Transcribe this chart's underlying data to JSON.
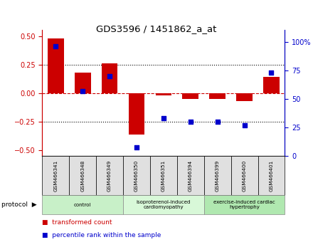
{
  "title": "GDS3596 / 1451862_a_at",
  "samples": [
    "GSM466341",
    "GSM466348",
    "GSM466349",
    "GSM466350",
    "GSM466351",
    "GSM466394",
    "GSM466399",
    "GSM466400",
    "GSM466401"
  ],
  "bar_values": [
    0.48,
    0.18,
    0.26,
    -0.36,
    -0.02,
    -0.05,
    -0.05,
    -0.07,
    0.14
  ],
  "dot_values": [
    96,
    57,
    70,
    8,
    33,
    30,
    30,
    27,
    73
  ],
  "groups": [
    {
      "label": "control",
      "start": 0,
      "end": 3,
      "color": "#c8f0c8"
    },
    {
      "label": "isoproterenol-induced\ncardiomyopathy",
      "start": 3,
      "end": 6,
      "color": "#d8f8d8"
    },
    {
      "label": "exercise-induced cardiac\nhypertrophy",
      "start": 6,
      "end": 9,
      "color": "#b0e8b0"
    }
  ],
  "group_label": "protocol",
  "bar_color": "#cc0000",
  "dot_color": "#0000cc",
  "ylim_left": [
    -0.55,
    0.55
  ],
  "ylim_right": [
    0,
    110
  ],
  "yticks_left": [
    -0.5,
    -0.25,
    0.0,
    0.25,
    0.5
  ],
  "yticks_right": [
    0,
    25,
    50,
    75,
    100
  ],
  "hline_y": 0.0,
  "dotted_lines": [
    -0.25,
    0.25
  ],
  "background_color": "#ffffff",
  "plot_bg": "#ffffff",
  "sample_box_color": "#e0e0e0",
  "legend_items": [
    {
      "label": "transformed count",
      "color": "#cc0000"
    },
    {
      "label": "percentile rank within the sample",
      "color": "#0000cc"
    }
  ]
}
